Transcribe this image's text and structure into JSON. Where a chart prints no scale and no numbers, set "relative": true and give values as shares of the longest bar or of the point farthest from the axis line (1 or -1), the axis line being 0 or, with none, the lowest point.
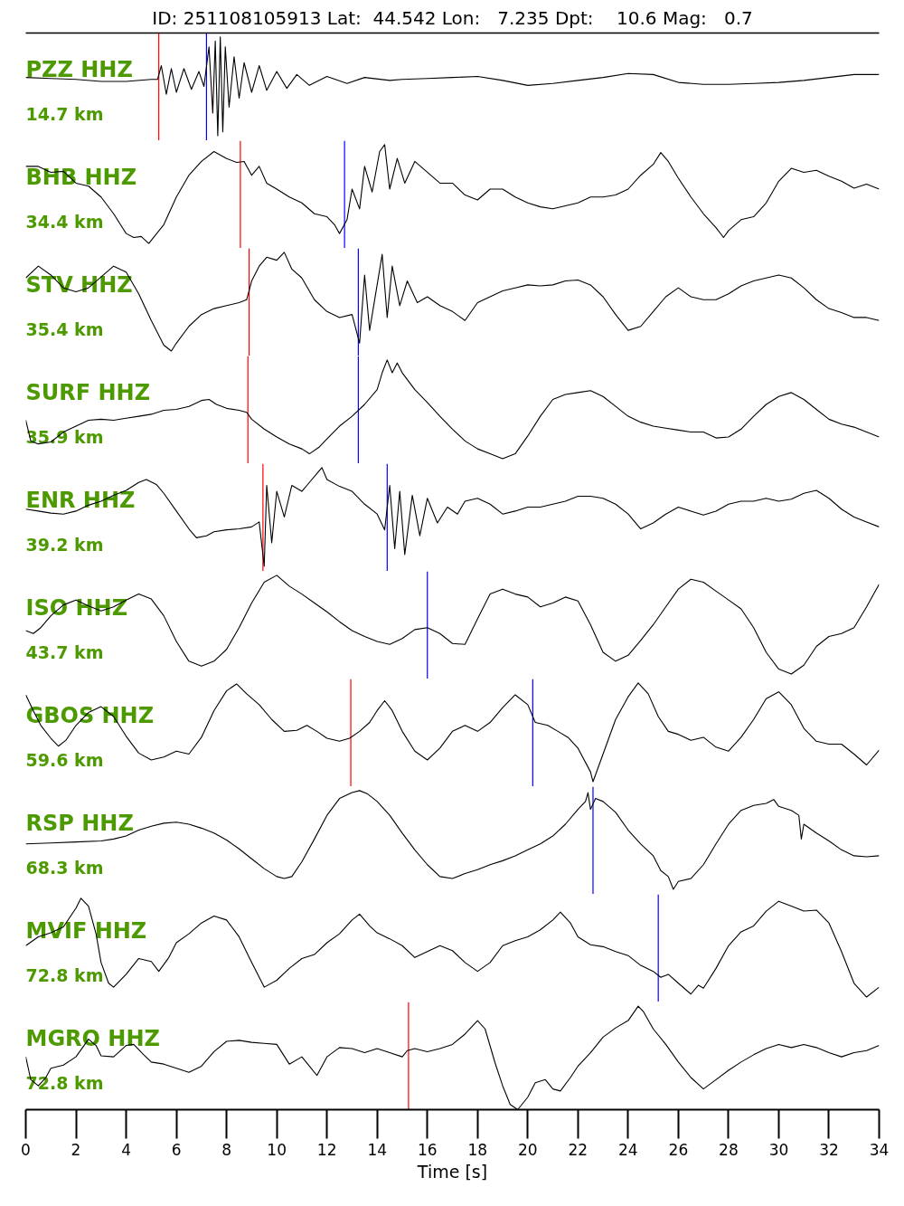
{
  "chart_data": [
    {
      "type": "line",
      "title": "ID: 251108105913 Lat:  44.542 Lon:   7.235 Dpt:    10.6 Mag:   0.7",
      "annotations": [
        "PZZ HHZ",
        "14.7 km"
      ],
      "relative": true,
      "xlim": [
        0,
        34
      ],
      "tick_labels": false,
      "x": [
        0,
        1,
        2,
        3,
        4,
        5,
        5.25,
        5.4,
        5.6,
        5.8,
        6,
        6.3,
        6.6,
        6.9,
        7.1,
        7.3,
        7.45,
        7.55,
        7.65,
        7.75,
        7.85,
        7.95,
        8.1,
        8.3,
        8.5,
        8.7,
        9,
        9.3,
        9.6,
        10,
        10.4,
        10.8,
        11.3,
        12,
        12.8,
        13.5,
        14.5,
        15,
        16,
        17,
        18,
        19,
        20,
        21,
        22,
        23,
        24,
        25,
        26,
        27,
        28,
        29,
        30,
        31,
        32,
        33,
        34
      ],
      "series": [
        {
          "color": "#000000",
          "values": [
            0.59,
            0.58,
            0.57,
            0.55,
            0.55,
            0.57,
            0.57,
            0.71,
            0.42,
            0.68,
            0.44,
            0.68,
            0.47,
            0.65,
            0.5,
            0.9,
            0.23,
            0.96,
            0,
            1,
            0.04,
            0.9,
            0.29,
            0.8,
            0.38,
            0.74,
            0.44,
            0.71,
            0.46,
            0.65,
            0.48,
            0.62,
            0.51,
            0.6,
            0.53,
            0.59,
            0.56,
            0.57,
            0.58,
            0.59,
            0.6,
            0.56,
            0.51,
            0.53,
            0.56,
            0.59,
            0.63,
            0.62,
            0.54,
            0.52,
            0.52,
            0.53,
            0.54,
            0.56,
            0.59,
            0.62,
            0.62
          ]
        }
      ],
      "ref_lines": [
        {
          "axis": "x",
          "value": 5.3,
          "color": "#ff0000"
        },
        {
          "axis": "x",
          "value": 7.2,
          "color": "#0000ff"
        }
      ]
    },
    {
      "type": "line",
      "annotations": [
        "BHB HHZ",
        "34.4 km"
      ],
      "relative": true,
      "xlim": [
        0,
        34
      ],
      "tick_labels": false,
      "x": [
        0,
        0.5,
        1,
        1.5,
        2,
        2.5,
        3,
        3.5,
        4,
        4.3,
        4.6,
        4.9,
        5.5,
        6,
        6.5,
        7,
        7.5,
        8,
        8.4,
        8.7,
        9,
        9.3,
        9.6,
        10,
        10.5,
        11,
        11.5,
        12,
        12.3,
        12.5,
        12.8,
        13,
        13.3,
        13.5,
        13.8,
        14.1,
        14.3,
        14.5,
        14.8,
        15.1,
        15.5,
        16,
        16.5,
        17,
        17.5,
        18,
        18.5,
        19,
        19.5,
        20,
        20.5,
        21,
        21.5,
        22,
        22.5,
        23,
        23.5,
        24,
        24.5,
        25,
        25.3,
        25.6,
        26,
        26.5,
        27,
        27.5,
        27.8,
        28,
        28.5,
        29,
        29.5,
        30,
        30.5,
        31,
        31.5,
        32,
        32.5,
        33,
        33.5,
        34
      ],
      "series": [
        {
          "color": "#000000",
          "values": [
            0.78,
            0.78,
            0.72,
            0.73,
            0.61,
            0.58,
            0.47,
            0.3,
            0.1,
            0.06,
            0.07,
            0,
            0.19,
            0.47,
            0.69,
            0.83,
            0.93,
            0.86,
            0.82,
            0.83,
            0.69,
            0.78,
            0.61,
            0.55,
            0.47,
            0.41,
            0.3,
            0.27,
            0.19,
            0.1,
            0.24,
            0.55,
            0.35,
            0.78,
            0.52,
            0.93,
            1,
            0.55,
            0.86,
            0.61,
            0.83,
            0.72,
            0.61,
            0.61,
            0.49,
            0.44,
            0.55,
            0.55,
            0.47,
            0.41,
            0.37,
            0.35,
            0.38,
            0.41,
            0.47,
            0.47,
            0.49,
            0.55,
            0.69,
            0.8,
            0.92,
            0.83,
            0.66,
            0.47,
            0.3,
            0.16,
            0.06,
            0.13,
            0.24,
            0.27,
            0.41,
            0.63,
            0.76,
            0.72,
            0.74,
            0.68,
            0.63,
            0.56,
            0.6,
            0.55
          ]
        }
      ],
      "ref_lines": [
        {
          "axis": "x",
          "value": 8.55,
          "color": "#ff0000"
        },
        {
          "axis": "x",
          "value": 12.7,
          "color": "#0000ff"
        }
      ]
    },
    {
      "type": "line",
      "annotations": [
        "STV HHZ",
        "35.4 km"
      ],
      "relative": true,
      "xlim": [
        0,
        34
      ],
      "tick_labels": false,
      "x": [
        0,
        0.5,
        1,
        1.5,
        2,
        2.5,
        3,
        3.5,
        4,
        4.5,
        5,
        5.5,
        5.8,
        6,
        6.5,
        7,
        7.5,
        8,
        8.5,
        8.8,
        9,
        9.3,
        9.6,
        10,
        10.3,
        10.6,
        11,
        11.5,
        12,
        12.5,
        13,
        13.3,
        13.5,
        13.7,
        14.2,
        14.4,
        14.6,
        14.9,
        15.2,
        15.6,
        16,
        16.5,
        17,
        17.5,
        18,
        18.5,
        19,
        19.5,
        20,
        20.5,
        21,
        21.5,
        22,
        22.5,
        23,
        23.5,
        24,
        24.5,
        25,
        25.5,
        26,
        26.5,
        27,
        27.5,
        28,
        28.5,
        29,
        29.5,
        30,
        30.5,
        31,
        31.5,
        32,
        32.5,
        33,
        33.5,
        34
      ],
      "series": [
        {
          "color": "#000000",
          "values": [
            0.74,
            0.86,
            0.77,
            0.64,
            0.6,
            0.64,
            0.75,
            0.86,
            0.8,
            0.58,
            0.31,
            0.06,
            0,
            0.08,
            0.25,
            0.37,
            0.43,
            0.46,
            0.49,
            0.52,
            0.71,
            0.86,
            0.95,
            0.92,
            1,
            0.83,
            0.74,
            0.52,
            0.4,
            0.34,
            0.37,
            0.08,
            0.77,
            0.21,
            0.98,
            0.34,
            0.86,
            0.46,
            0.71,
            0.49,
            0.55,
            0.46,
            0.4,
            0.31,
            0.49,
            0.55,
            0.61,
            0.64,
            0.67,
            0.66,
            0.67,
            0.71,
            0.72,
            0.67,
            0.55,
            0.37,
            0.21,
            0.25,
            0.4,
            0.55,
            0.64,
            0.55,
            0.52,
            0.52,
            0.58,
            0.66,
            0.71,
            0.74,
            0.77,
            0.74,
            0.64,
            0.52,
            0.43,
            0.39,
            0.34,
            0.34,
            0.31
          ]
        }
      ],
      "ref_lines": [
        {
          "axis": "x",
          "value": 8.9,
          "color": "#ff0000"
        },
        {
          "axis": "x",
          "value": 13.25,
          "color": "#0000ff"
        }
      ]
    },
    {
      "type": "line",
      "annotations": [
        "SURF HHZ",
        "35.9 km"
      ],
      "relative": true,
      "xlim": [
        0,
        34
      ],
      "tick_labels": false,
      "x": [
        0,
        0.2,
        0.5,
        1,
        1.5,
        2,
        2.5,
        3,
        3.5,
        4,
        4.5,
        5,
        5.5,
        6,
        6.5,
        7,
        7.3,
        7.6,
        8,
        8.5,
        8.8,
        9,
        9.5,
        10,
        10.5,
        11,
        11.3,
        11.7,
        12,
        12.5,
        13,
        13.5,
        14,
        14.2,
        14.4,
        14.6,
        14.8,
        15,
        15.5,
        16,
        16.5,
        17,
        17.5,
        18,
        18.5,
        19,
        19.5,
        20,
        20.5,
        21,
        21.5,
        22,
        22.5,
        23,
        23.5,
        24,
        24.5,
        25,
        25.5,
        26,
        26.5,
        27,
        27.5,
        28,
        28.5,
        29,
        29.5,
        30,
        30.5,
        31,
        31.5,
        32,
        32.5,
        33,
        33.5,
        34
      ],
      "series": [
        {
          "color": "#000000",
          "values": [
            0.39,
            0.18,
            0.15,
            0.17,
            0.27,
            0.33,
            0.39,
            0.4,
            0.39,
            0.41,
            0.43,
            0.45,
            0.49,
            0.5,
            0.53,
            0.59,
            0.6,
            0.55,
            0.51,
            0.49,
            0.47,
            0.4,
            0.3,
            0.22,
            0.15,
            0.1,
            0.05,
            0.12,
            0.2,
            0.33,
            0.43,
            0.55,
            0.7,
            0.87,
            1,
            0.87,
            0.97,
            0.87,
            0.7,
            0.57,
            0.43,
            0.3,
            0.18,
            0.1,
            0.05,
            0,
            0.05,
            0.23,
            0.43,
            0.6,
            0.65,
            0.67,
            0.69,
            0.63,
            0.53,
            0.43,
            0.37,
            0.33,
            0.31,
            0.29,
            0.27,
            0.27,
            0.21,
            0.22,
            0.3,
            0.43,
            0.55,
            0.63,
            0.67,
            0.6,
            0.5,
            0.4,
            0.35,
            0.32,
            0.27,
            0.22
          ]
        }
      ],
      "ref_lines": [
        {
          "axis": "x",
          "value": 8.85,
          "color": "#ff0000"
        },
        {
          "axis": "x",
          "value": 13.25,
          "color": "#0000ff"
        }
      ]
    },
    {
      "type": "line",
      "annotations": [
        "ENR HHZ",
        "39.2 km"
      ],
      "relative": true,
      "xlim": [
        0,
        34
      ],
      "tick_labels": false,
      "x": [
        0,
        0.5,
        1,
        1.5,
        2,
        2.5,
        3,
        3.5,
        4,
        4.5,
        4.8,
        5.2,
        5.5,
        6,
        6.5,
        6.8,
        7.2,
        7.5,
        8,
        8.5,
        9,
        9.3,
        9.5,
        9.6,
        9.8,
        10,
        10.3,
        10.6,
        11,
        11.3,
        11.6,
        11.8,
        12,
        12.5,
        13,
        13.5,
        14,
        14.3,
        14.5,
        14.7,
        14.9,
        15.1,
        15.4,
        15.7,
        16,
        16.4,
        16.8,
        17.2,
        17.5,
        18,
        18.5,
        19,
        19.5,
        20,
        20.5,
        21,
        21.5,
        22,
        22.5,
        23,
        23.5,
        24,
        24.5,
        25,
        25.5,
        26,
        26.5,
        27,
        27.5,
        28,
        28.5,
        29,
        29.5,
        30,
        30.5,
        31,
        31.5,
        32,
        32.5,
        33,
        33.5,
        34
      ],
      "series": [
        {
          "color": "#000000",
          "values": [
            0.58,
            0.56,
            0.54,
            0.53,
            0.56,
            0.62,
            0.66,
            0.72,
            0.77,
            0.85,
            0.88,
            0.83,
            0.74,
            0.56,
            0.38,
            0.29,
            0.31,
            0.35,
            0.37,
            0.38,
            0.4,
            0.45,
            0,
            0.82,
            0.24,
            0.76,
            0.5,
            0.82,
            0.76,
            0.85,
            0.94,
            1,
            0.88,
            0.81,
            0.76,
            0.63,
            0.53,
            0.37,
            0.82,
            0.18,
            0.76,
            0.12,
            0.72,
            0.31,
            0.69,
            0.44,
            0.6,
            0.53,
            0.66,
            0.69,
            0.63,
            0.53,
            0.56,
            0.6,
            0.6,
            0.63,
            0.66,
            0.71,
            0.71,
            0.69,
            0.63,
            0.53,
            0.38,
            0.44,
            0.53,
            0.6,
            0.56,
            0.52,
            0.56,
            0.63,
            0.66,
            0.66,
            0.69,
            0.66,
            0.68,
            0.74,
            0.77,
            0.69,
            0.58,
            0.5,
            0.45,
            0.4
          ]
        }
      ],
      "ref_lines": [
        {
          "axis": "x",
          "value": 9.45,
          "color": "#ff0000"
        },
        {
          "axis": "x",
          "value": 14.4,
          "color": "#0000ff"
        }
      ]
    },
    {
      "type": "line",
      "annotations": [
        "ISO HHZ",
        "43.7 km"
      ],
      "relative": true,
      "xlim": [
        0,
        34
      ],
      "tick_labels": false,
      "x": [
        0,
        0.3,
        0.6,
        1,
        1.5,
        2,
        2.5,
        3,
        3.5,
        4,
        4.5,
        5,
        5.5,
        6,
        6.5,
        7,
        7.5,
        8,
        8.5,
        9,
        9.5,
        10,
        10.5,
        11,
        11.5,
        12,
        12.5,
        13,
        13.5,
        14,
        14.5,
        15,
        15.5,
        16,
        16.5,
        17,
        17.5,
        18,
        18.5,
        19,
        19.5,
        20,
        20.5,
        21,
        21.5,
        22,
        22.5,
        23,
        23.5,
        24,
        24.5,
        25,
        25.5,
        26,
        26.5,
        27,
        27.5,
        28,
        28.5,
        29,
        29.5,
        30,
        30.5,
        31,
        31.5,
        32,
        32.5,
        33,
        33.5,
        34
      ],
      "series": [
        {
          "color": "#000000",
          "values": [
            0.44,
            0.41,
            0.47,
            0.59,
            0.7,
            0.75,
            0.69,
            0.64,
            0.68,
            0.75,
            0.81,
            0.76,
            0.59,
            0.33,
            0.13,
            0.08,
            0.13,
            0.25,
            0.47,
            0.72,
            0.93,
            1,
            0.89,
            0.81,
            0.72,
            0.63,
            0.53,
            0.44,
            0.38,
            0.33,
            0.3,
            0.36,
            0.45,
            0.47,
            0.41,
            0.31,
            0.3,
            0.56,
            0.81,
            0.86,
            0.81,
            0.78,
            0.68,
            0.72,
            0.78,
            0.74,
            0.5,
            0.22,
            0.13,
            0.19,
            0.34,
            0.5,
            0.68,
            0.86,
            0.96,
            0.93,
            0.84,
            0.75,
            0.66,
            0.47,
            0.22,
            0.05,
            0,
            0.09,
            0.28,
            0.38,
            0.41,
            0.47,
            0.68,
            0.91
          ]
        }
      ],
      "ref_lines": [
        {
          "axis": "x",
          "value": 16.0,
          "color": "#0000ff"
        }
      ]
    },
    {
      "type": "line",
      "annotations": [
        "GBOS HHZ",
        "59.6 km"
      ],
      "relative": true,
      "xlim": [
        0,
        34
      ],
      "tick_labels": false,
      "x": [
        0,
        0.3,
        0.6,
        1,
        1.3,
        1.6,
        2,
        2.5,
        3,
        3.5,
        4,
        4.5,
        5,
        5.5,
        6,
        6.5,
        7,
        7.5,
        8,
        8.4,
        8.8,
        9.3,
        9.8,
        10.3,
        10.8,
        11.2,
        11.6,
        12,
        12.5,
        12.9,
        13.3,
        13.7,
        14,
        14.3,
        14.6,
        15,
        15.5,
        16,
        16.5,
        17,
        17.5,
        18,
        18.5,
        19,
        19.5,
        20,
        20.3,
        20.8,
        21.2,
        21.6,
        22,
        22.5,
        22.6,
        23,
        23.5,
        24,
        24.4,
        24.8,
        25.2,
        25.6,
        26,
        26.5,
        27,
        27.5,
        28,
        28.5,
        29,
        29.5,
        30,
        30.5,
        31,
        31.5,
        32,
        32.5,
        33,
        33.5,
        34
      ],
      "series": [
        {
          "color": "#000000",
          "values": [
            0.88,
            0.72,
            0.57,
            0.44,
            0.36,
            0.42,
            0.57,
            0.7,
            0.76,
            0.66,
            0.46,
            0.29,
            0.22,
            0.25,
            0.31,
            0.28,
            0.45,
            0.72,
            0.92,
            0.99,
            0.89,
            0.78,
            0.63,
            0.51,
            0.52,
            0.57,
            0.51,
            0.44,
            0.41,
            0.44,
            0.51,
            0.6,
            0.72,
            0.82,
            0.72,
            0.51,
            0.31,
            0.22,
            0.34,
            0.51,
            0.57,
            0.51,
            0.6,
            0.75,
            0.88,
            0.78,
            0.6,
            0.57,
            0.51,
            0.45,
            0.34,
            0.1,
            0,
            0.28,
            0.63,
            0.86,
            1,
            0.89,
            0.66,
            0.51,
            0.48,
            0.42,
            0.45,
            0.35,
            0.31,
            0.45,
            0.63,
            0.84,
            0.91,
            0.78,
            0.54,
            0.41,
            0.38,
            0.38,
            0.28,
            0.17,
            0.32
          ]
        }
      ],
      "ref_lines": [
        {
          "axis": "x",
          "value": 12.95,
          "color": "#ff0000"
        },
        {
          "axis": "x",
          "value": 20.2,
          "color": "#0000ff"
        }
      ]
    },
    {
      "type": "line",
      "annotations": [
        "RSP HHZ",
        "68.3 km"
      ],
      "relative": true,
      "xlim": [
        0,
        34
      ],
      "tick_labels": false,
      "x": [
        0,
        1,
        2,
        3,
        3.5,
        4,
        4.5,
        5,
        5.5,
        6,
        6.5,
        7,
        7.5,
        8,
        8.5,
        9,
        9.5,
        10,
        10.3,
        10.6,
        11,
        11.5,
        12,
        12.5,
        13,
        13.3,
        13.6,
        14,
        14.5,
        15,
        15.5,
        16,
        16.5,
        17,
        17.5,
        18,
        18.5,
        19,
        19.5,
        20,
        20.5,
        21,
        21.5,
        22,
        22.3,
        22.4,
        22.5,
        22.7,
        23,
        23.5,
        24,
        24.5,
        25,
        25.3,
        25.6,
        25.8,
        26,
        26.5,
        27,
        27.5,
        28,
        28.5,
        29,
        29.5,
        29.8,
        30,
        30.5,
        30.8,
        30.9,
        31,
        31.5,
        32,
        32.5,
        33,
        33.5,
        34
      ],
      "series": [
        {
          "color": "#000000",
          "values": [
            0.46,
            0.47,
            0.48,
            0.49,
            0.51,
            0.54,
            0.6,
            0.64,
            0.67,
            0.68,
            0.66,
            0.62,
            0.57,
            0.5,
            0.41,
            0.31,
            0.21,
            0.13,
            0.11,
            0.13,
            0.28,
            0.51,
            0.75,
            0.92,
            0.98,
            1,
            0.97,
            0.89,
            0.75,
            0.57,
            0.4,
            0.25,
            0.13,
            0.11,
            0.16,
            0.2,
            0.25,
            0.29,
            0.34,
            0.4,
            0.46,
            0.54,
            0.66,
            0.81,
            0.89,
            0.98,
            0.81,
            0.92,
            0.89,
            0.78,
            0.6,
            0.46,
            0.34,
            0.19,
            0.13,
            0,
            0.08,
            0.11,
            0.25,
            0.46,
            0.66,
            0.8,
            0.85,
            0.87,
            0.91,
            0.84,
            0.8,
            0.75,
            0.51,
            0.66,
            0.57,
            0.49,
            0.4,
            0.34,
            0.33,
            0.34
          ]
        }
      ],
      "ref_lines": [
        {
          "axis": "x",
          "value": 22.6,
          "color": "#0000ff"
        }
      ]
    },
    {
      "type": "line",
      "annotations": [
        "MVIF HHZ",
        "72.8 km"
      ],
      "relative": true,
      "xlim": [
        0,
        34
      ],
      "tick_labels": false,
      "x": [
        0,
        0.5,
        1,
        1.5,
        2,
        2.2,
        2.5,
        2.8,
        3,
        3.3,
        3.5,
        4,
        4.5,
        5,
        5.3,
        5.7,
        6,
        6.5,
        7,
        7.5,
        8,
        8.5,
        9,
        9.5,
        10,
        10.5,
        11,
        11.5,
        12,
        12.5,
        13,
        13.3,
        13.7,
        14,
        14.5,
        15,
        15.5,
        16,
        16.5,
        17,
        17.5,
        18,
        18.5,
        19,
        19.5,
        20,
        20.5,
        21,
        21.3,
        21.7,
        22,
        22.5,
        23,
        23.5,
        24,
        24.5,
        25,
        25.3,
        25.6,
        26,
        26.5,
        26.8,
        27,
        27.5,
        28,
        28.5,
        29,
        29.5,
        30,
        30.5,
        31,
        31.5,
        32,
        32.5,
        33,
        33.5,
        34
      ],
      "series": [
        {
          "color": "#000000",
          "values": [
            0.52,
            0.61,
            0.65,
            0.71,
            0.9,
            1,
            0.92,
            0.64,
            0.35,
            0.14,
            0.1,
            0.23,
            0.39,
            0.36,
            0.26,
            0.4,
            0.55,
            0.64,
            0.75,
            0.82,
            0.78,
            0.61,
            0.35,
            0.1,
            0.17,
            0.29,
            0.39,
            0.43,
            0.55,
            0.64,
            0.78,
            0.84,
            0.72,
            0.65,
            0.59,
            0.52,
            0.4,
            0.46,
            0.52,
            0.47,
            0.35,
            0.26,
            0.35,
            0.52,
            0.57,
            0.61,
            0.68,
            0.78,
            0.86,
            0.75,
            0.61,
            0.53,
            0.51,
            0.46,
            0.42,
            0.32,
            0.26,
            0.2,
            0.23,
            0.14,
            0.03,
            0.12,
            0.09,
            0.29,
            0.52,
            0.66,
            0.72,
            0.87,
            0.97,
            0.92,
            0.87,
            0.88,
            0.75,
            0.46,
            0.14,
            0,
            0.1
          ]
        }
      ],
      "ref_lines": [
        {
          "axis": "x",
          "value": 25.2,
          "color": "#0000ff"
        }
      ]
    },
    {
      "type": "line",
      "annotations": [
        "MGRO HHZ",
        "72.8 km"
      ],
      "relative": true,
      "xlim": [
        0,
        34
      ],
      "tick_labels": "x",
      "xlabel": "Time [s]",
      "x": [
        0,
        0.2,
        0.5,
        0.8,
        1,
        1.5,
        2,
        2.5,
        2.8,
        3,
        3.5,
        4,
        4.3,
        4.7,
        5,
        5.5,
        6,
        6.5,
        7,
        7.5,
        8,
        8.5,
        9,
        9.5,
        10,
        10.5,
        11,
        11.3,
        11.6,
        12,
        12.5,
        13,
        13.5,
        14,
        14.5,
        15,
        15.2,
        15.5,
        16,
        16.5,
        17,
        17.5,
        18,
        18.3,
        18.7,
        19,
        19.3,
        19.6,
        20,
        20.3,
        20.7,
        21,
        21.3,
        21.7,
        22,
        22.5,
        23,
        23.5,
        24,
        24.4,
        24.6,
        25,
        25.5,
        26,
        26.5,
        27,
        27.5,
        28,
        28.5,
        29,
        29.5,
        30,
        30.5,
        31,
        31.5,
        32,
        32.5,
        33,
        33.5,
        34
      ],
      "series": [
        {
          "color": "#000000",
          "values": [
            0.51,
            0.29,
            0.23,
            0.31,
            0.4,
            0.43,
            0.51,
            0.68,
            0.62,
            0.52,
            0.51,
            0.62,
            0.63,
            0.53,
            0.46,
            0.44,
            0.4,
            0.36,
            0.42,
            0.56,
            0.66,
            0.67,
            0.65,
            0.64,
            0.63,
            0.44,
            0.51,
            0.42,
            0.33,
            0.51,
            0.6,
            0.59,
            0.55,
            0.59,
            0.55,
            0.51,
            0.57,
            0.59,
            0.56,
            0.59,
            0.63,
            0.73,
            0.86,
            0.78,
            0.45,
            0.23,
            0.05,
            0,
            0.12,
            0.26,
            0.29,
            0.2,
            0.18,
            0.31,
            0.42,
            0.55,
            0.7,
            0.79,
            0.86,
            1,
            0.95,
            0.78,
            0.63,
            0.46,
            0.31,
            0.2,
            0.29,
            0.38,
            0.46,
            0.53,
            0.59,
            0.63,
            0.6,
            0.63,
            0.6,
            0.55,
            0.51,
            0.55,
            0.57,
            0.62
          ]
        }
      ],
      "ref_lines": [
        {
          "axis": "x",
          "value": 15.25,
          "color": "#ff0000"
        }
      ],
      "xticks": [
        0,
        2,
        4,
        6,
        8,
        10,
        12,
        14,
        16,
        18,
        20,
        22,
        24,
        26,
        28,
        30,
        32,
        34
      ]
    }
  ]
}
